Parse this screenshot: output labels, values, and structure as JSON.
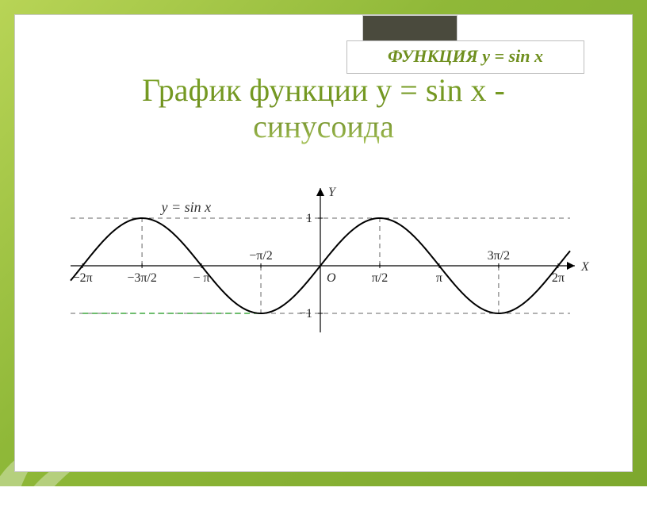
{
  "badge": {
    "prefix": "ФУНКЦИЯ ",
    "formula": "y = sin x"
  },
  "title": {
    "line1": "График функции y = sin x -",
    "line2": "синусоида"
  },
  "chart": {
    "type": "line",
    "equation": "y = sin x",
    "x_axis_label": "X",
    "y_axis_label": "Y",
    "origin_label": "O",
    "xlim": [
      -6.6,
      6.6
    ],
    "ylim": [
      -1.4,
      1.6
    ],
    "amplitude": 1,
    "period": 6.2832,
    "curve_color": "#000000",
    "curve_width": 2,
    "axis_color": "#000000",
    "axis_width": 1.2,
    "dash_color": "#666666",
    "dash_green": "#3fa83f",
    "background": "#ffffff",
    "x_ticks": [
      {
        "v": -6.2832,
        "label": "−2π"
      },
      {
        "v": -4.7124,
        "label": "−3π/2"
      },
      {
        "v": -3.1416,
        "label": "− π"
      },
      {
        "v": -1.5708,
        "label": "−π/2"
      },
      {
        "v": 1.5708,
        "label": "π/2"
      },
      {
        "v": 3.1416,
        "label": "π"
      },
      {
        "v": 4.7124,
        "label": "3π/2"
      },
      {
        "v": 6.2832,
        "label": "2π"
      }
    ],
    "y_ticks": [
      {
        "v": 1,
        "label": "1"
      },
      {
        "v": -1,
        "label": "−1"
      }
    ],
    "h_guides": [
      1,
      -1
    ],
    "v_guides_to_top": [
      -4.7124,
      1.5708
    ],
    "v_guides_to_bottom": [
      -1.5708,
      4.7124
    ],
    "green_guide": {
      "y": -1,
      "x_from": -6.2832,
      "x_to": -1.5708
    },
    "upper_tick_labels_at_y": 0.25,
    "lower_tick_labels_at_y": -0.35
  },
  "colors": {
    "frame_bg_start": "#b8d456",
    "frame_bg_end": "#7da82e",
    "badge_dark": "#4a4a3d",
    "accent_text": "#6f8f1e"
  }
}
